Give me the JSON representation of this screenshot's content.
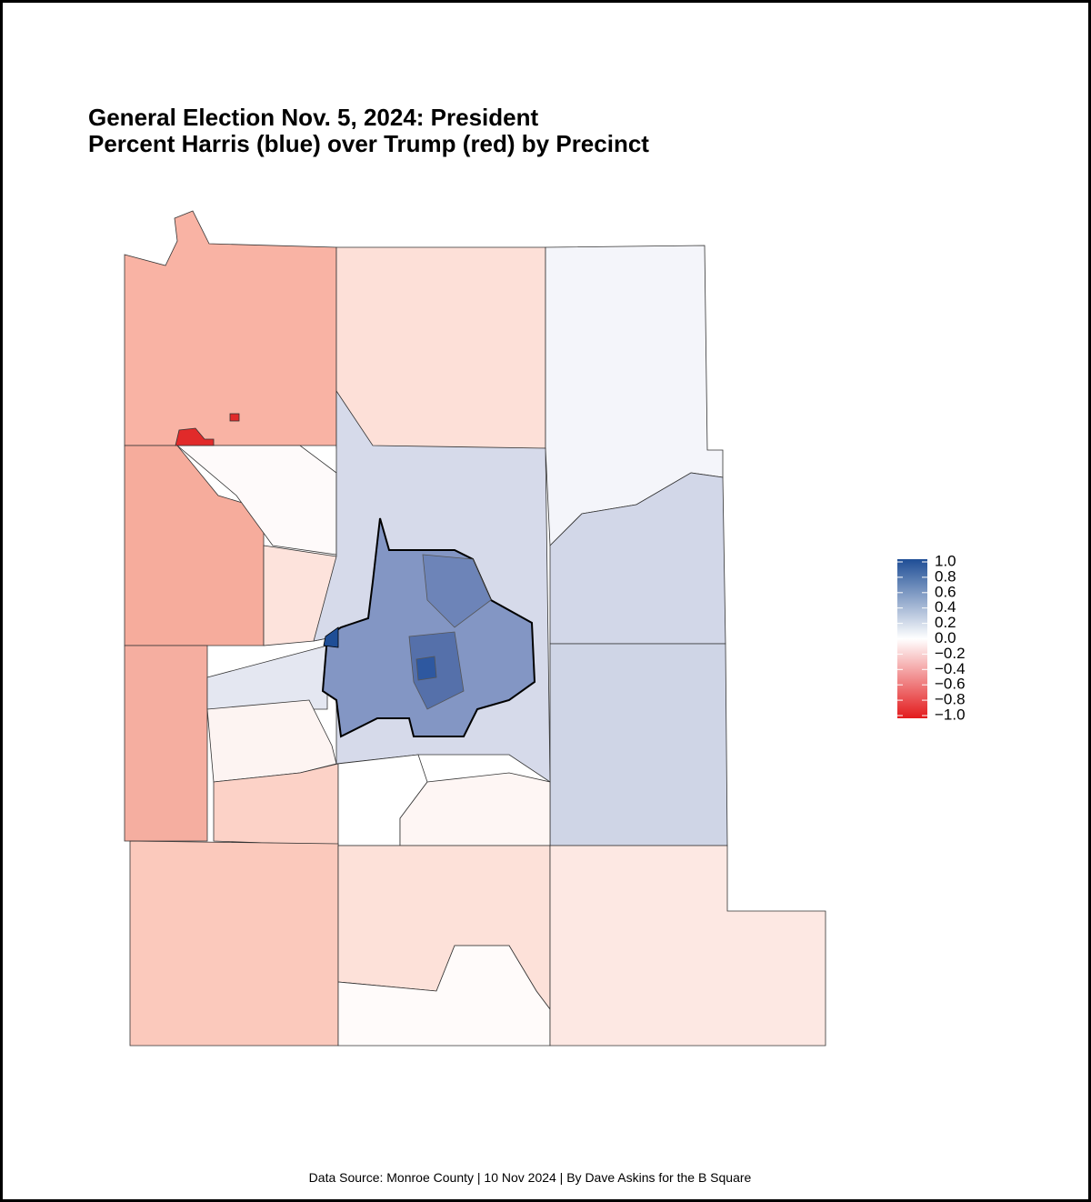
{
  "header": {
    "title_line1": "General Election Nov. 5, 2024: President",
    "title_line2": "Percent Harris (blue) over Trump (red) by Precinct"
  },
  "legend": {
    "lim": [
      -1,
      1
    ],
    "ticks": [
      {
        "value": 1,
        "label": "1.0"
      },
      0.8,
      0.6,
      0.4,
      0.2,
      {
        "value": 0,
        "label": "0.0"
      },
      {
        "value": -0.2,
        "label": "−0.2"
      },
      {
        "value": -0.4,
        "label": "−0.4"
      },
      {
        "value": -0.6,
        "label": "−0.6"
      },
      {
        "value": -0.8,
        "label": "−0.8"
      },
      {
        "value": -1,
        "label": "−1.0"
      }
    ]
  },
  "footer": {
    "caption": "Data Source: Monroe County | 10 Nov 2024 | By Dave Askins for the B Square"
  }
}
